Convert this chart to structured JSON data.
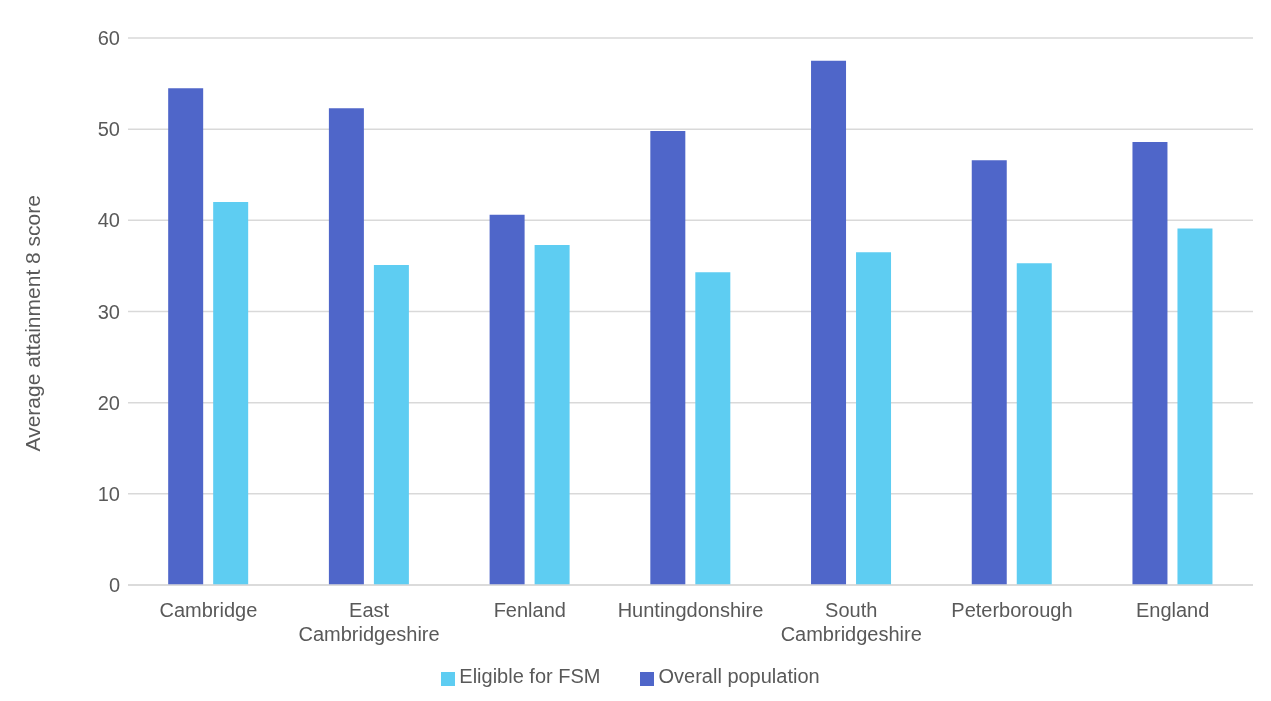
{
  "chart_data": {
    "type": "bar",
    "ylabel": "Average attainment 8 score",
    "categories": [
      "Cambridge",
      "East Cambridgeshire",
      "Fenland",
      "Huntingdonshire",
      "South Cambridgeshire",
      "Peterborough",
      "England"
    ],
    "series": [
      {
        "name": "Overall population",
        "color": "#4f66c9",
        "values": [
          54.5,
          52.3,
          40.6,
          49.8,
          57.5,
          46.6,
          48.6
        ]
      },
      {
        "name": "Eligible for FSM",
        "color": "#5ecdf2",
        "values": [
          42.0,
          35.1,
          37.3,
          34.3,
          36.5,
          35.3,
          39.1
        ]
      }
    ],
    "ylim": [
      0,
      60
    ],
    "yticks": [
      0,
      10,
      20,
      30,
      40,
      50,
      60
    ],
    "grid": "y",
    "legend": "bottom"
  }
}
